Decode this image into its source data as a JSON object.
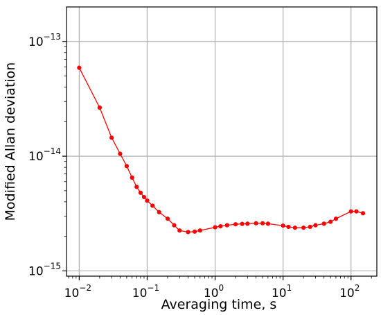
{
  "chart_data": {
    "type": "line",
    "xlabel": "Averaging time, s",
    "ylabel": "Modified Allan deviation",
    "xscale": "log",
    "yscale": "log",
    "xlim": [
      0.0065,
      240
    ],
    "ylim": [
      9e-16,
      2e-13
    ],
    "grid": true,
    "series": [
      {
        "color": "#ff0000",
        "marker": "circle",
        "x": [
          0.01,
          0.02,
          0.03,
          0.04,
          0.05,
          0.06,
          0.07,
          0.08,
          0.09,
          0.1,
          0.12,
          0.15,
          0.2,
          0.25,
          0.3,
          0.4,
          0.5,
          0.6,
          1,
          1.2,
          1.5,
          2,
          2.5,
          3,
          4,
          5,
          6,
          10,
          12,
          15,
          20,
          25,
          30,
          40,
          50,
          60,
          100,
          120,
          150
        ],
        "y": [
          5.9e-14,
          2.65e-14,
          1.45e-14,
          1.05e-14,
          8.2e-15,
          6.5e-15,
          5.4e-15,
          4.8e-15,
          4.4e-15,
          4.1e-15,
          3.7e-15,
          3.25e-15,
          2.85e-15,
          2.5e-15,
          2.25e-15,
          2.18e-15,
          2.2e-15,
          2.25e-15,
          2.4e-15,
          2.45e-15,
          2.5e-15,
          2.55e-15,
          2.57e-15,
          2.58e-15,
          2.6e-15,
          2.6e-15,
          2.58e-15,
          2.48e-15,
          2.42e-15,
          2.38e-15,
          2.38e-15,
          2.42e-15,
          2.5e-15,
          2.58e-15,
          2.68e-15,
          2.85e-15,
          3.3e-15,
          3.3e-15,
          3.18e-15
        ]
      }
    ],
    "x_ticks": [
      {
        "value": 0.01,
        "base": "10",
        "exp": "−2"
      },
      {
        "value": 0.1,
        "base": "10",
        "exp": "−1"
      },
      {
        "value": 1,
        "base": "10",
        "exp": "0"
      },
      {
        "value": 10,
        "base": "10",
        "exp": "1"
      },
      {
        "value": 100,
        "base": "10",
        "exp": "2"
      }
    ],
    "y_ticks": [
      {
        "value": 1e-15,
        "base": "10",
        "exp": "−15"
      },
      {
        "value": 1e-14,
        "base": "10",
        "exp": "−14"
      },
      {
        "value": 1e-13,
        "base": "10",
        "exp": "−13"
      }
    ]
  }
}
